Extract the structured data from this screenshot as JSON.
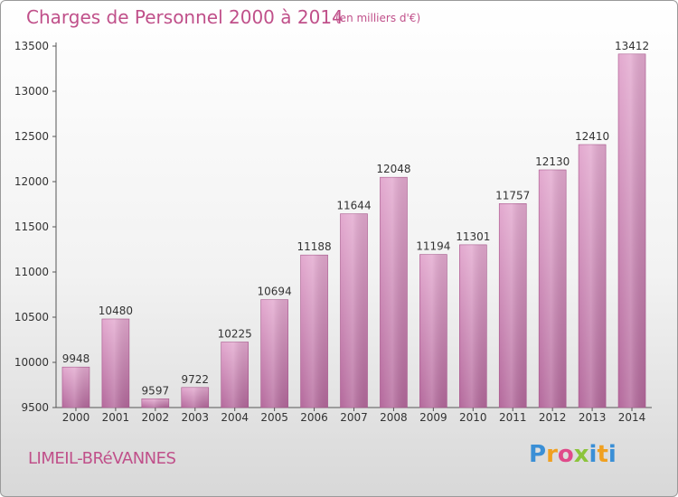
{
  "header": {
    "title": "Charges de Personnel 2000 à 2014",
    "unit": "(en milliers d'€)"
  },
  "footer": {
    "commune": "LIMEIL-BRéVANNES",
    "brand": "Proxiti"
  },
  "colors": {
    "accent": "#c0508a",
    "bar_top": "#e3a9cf",
    "bar_bottom": "#b4699c"
  },
  "chart_data": {
    "type": "bar",
    "categories": [
      "2000",
      "2001",
      "2002",
      "2003",
      "2004",
      "2005",
      "2006",
      "2007",
      "2008",
      "2009",
      "2010",
      "2011",
      "2012",
      "2013",
      "2014"
    ],
    "values": [
      9948,
      10480,
      9597,
      9722,
      10225,
      10694,
      11188,
      11644,
      12048,
      11194,
      11301,
      11757,
      12130,
      12410,
      13412
    ],
    "title": "Charges de Personnel 2000 à 2014",
    "xlabel": "",
    "ylabel": "",
    "ylim": [
      9500,
      13500
    ],
    "yticks": [
      9500,
      10000,
      10500,
      11000,
      11500,
      12000,
      12500,
      13000,
      13500
    ],
    "grid": false,
    "data_labels": true
  }
}
